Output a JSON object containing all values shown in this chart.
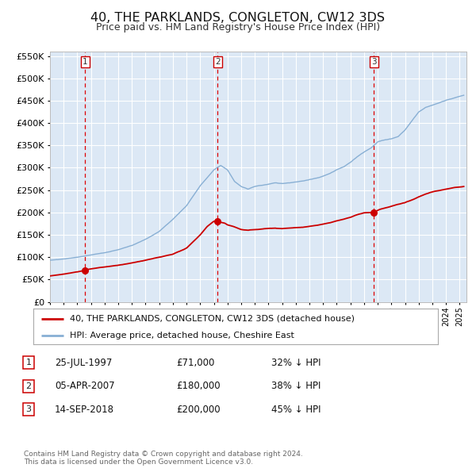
{
  "title": "40, THE PARKLANDS, CONGLETON, CW12 3DS",
  "subtitle": "Price paid vs. HM Land Registry's House Price Index (HPI)",
  "background_color": "#ffffff",
  "plot_bg_color": "#dce8f5",
  "grid_color": "#ffffff",
  "ylim": [
    0,
    560000
  ],
  "sale_marker_color": "#cc0000",
  "hpi_line_color": "#88afd4",
  "price_line_color": "#cc0000",
  "dashed_line_color": "#dd0000",
  "sale_points": [
    {
      "label": "1",
      "date_x": 1997.57,
      "price": 71000
    },
    {
      "label": "2",
      "date_x": 2007.27,
      "price": 180000
    },
    {
      "label": "3",
      "date_x": 2018.71,
      "price": 200000
    }
  ],
  "legend_price_label": "40, THE PARKLANDS, CONGLETON, CW12 3DS (detached house)",
  "legend_hpi_label": "HPI: Average price, detached house, Cheshire East",
  "table_rows": [
    {
      "num": "1",
      "date": "25-JUL-1997",
      "price": "£71,000",
      "pct": "32% ↓ HPI"
    },
    {
      "num": "2",
      "date": "05-APR-2007",
      "price": "£180,000",
      "pct": "38% ↓ HPI"
    },
    {
      "num": "3",
      "date": "14-SEP-2018",
      "price": "£200,000",
      "pct": "45% ↓ HPI"
    }
  ],
  "footer": "Contains HM Land Registry data © Crown copyright and database right 2024.\nThis data is licensed under the Open Government Licence v3.0.",
  "xmin": 1995.0,
  "xmax": 2025.5
}
